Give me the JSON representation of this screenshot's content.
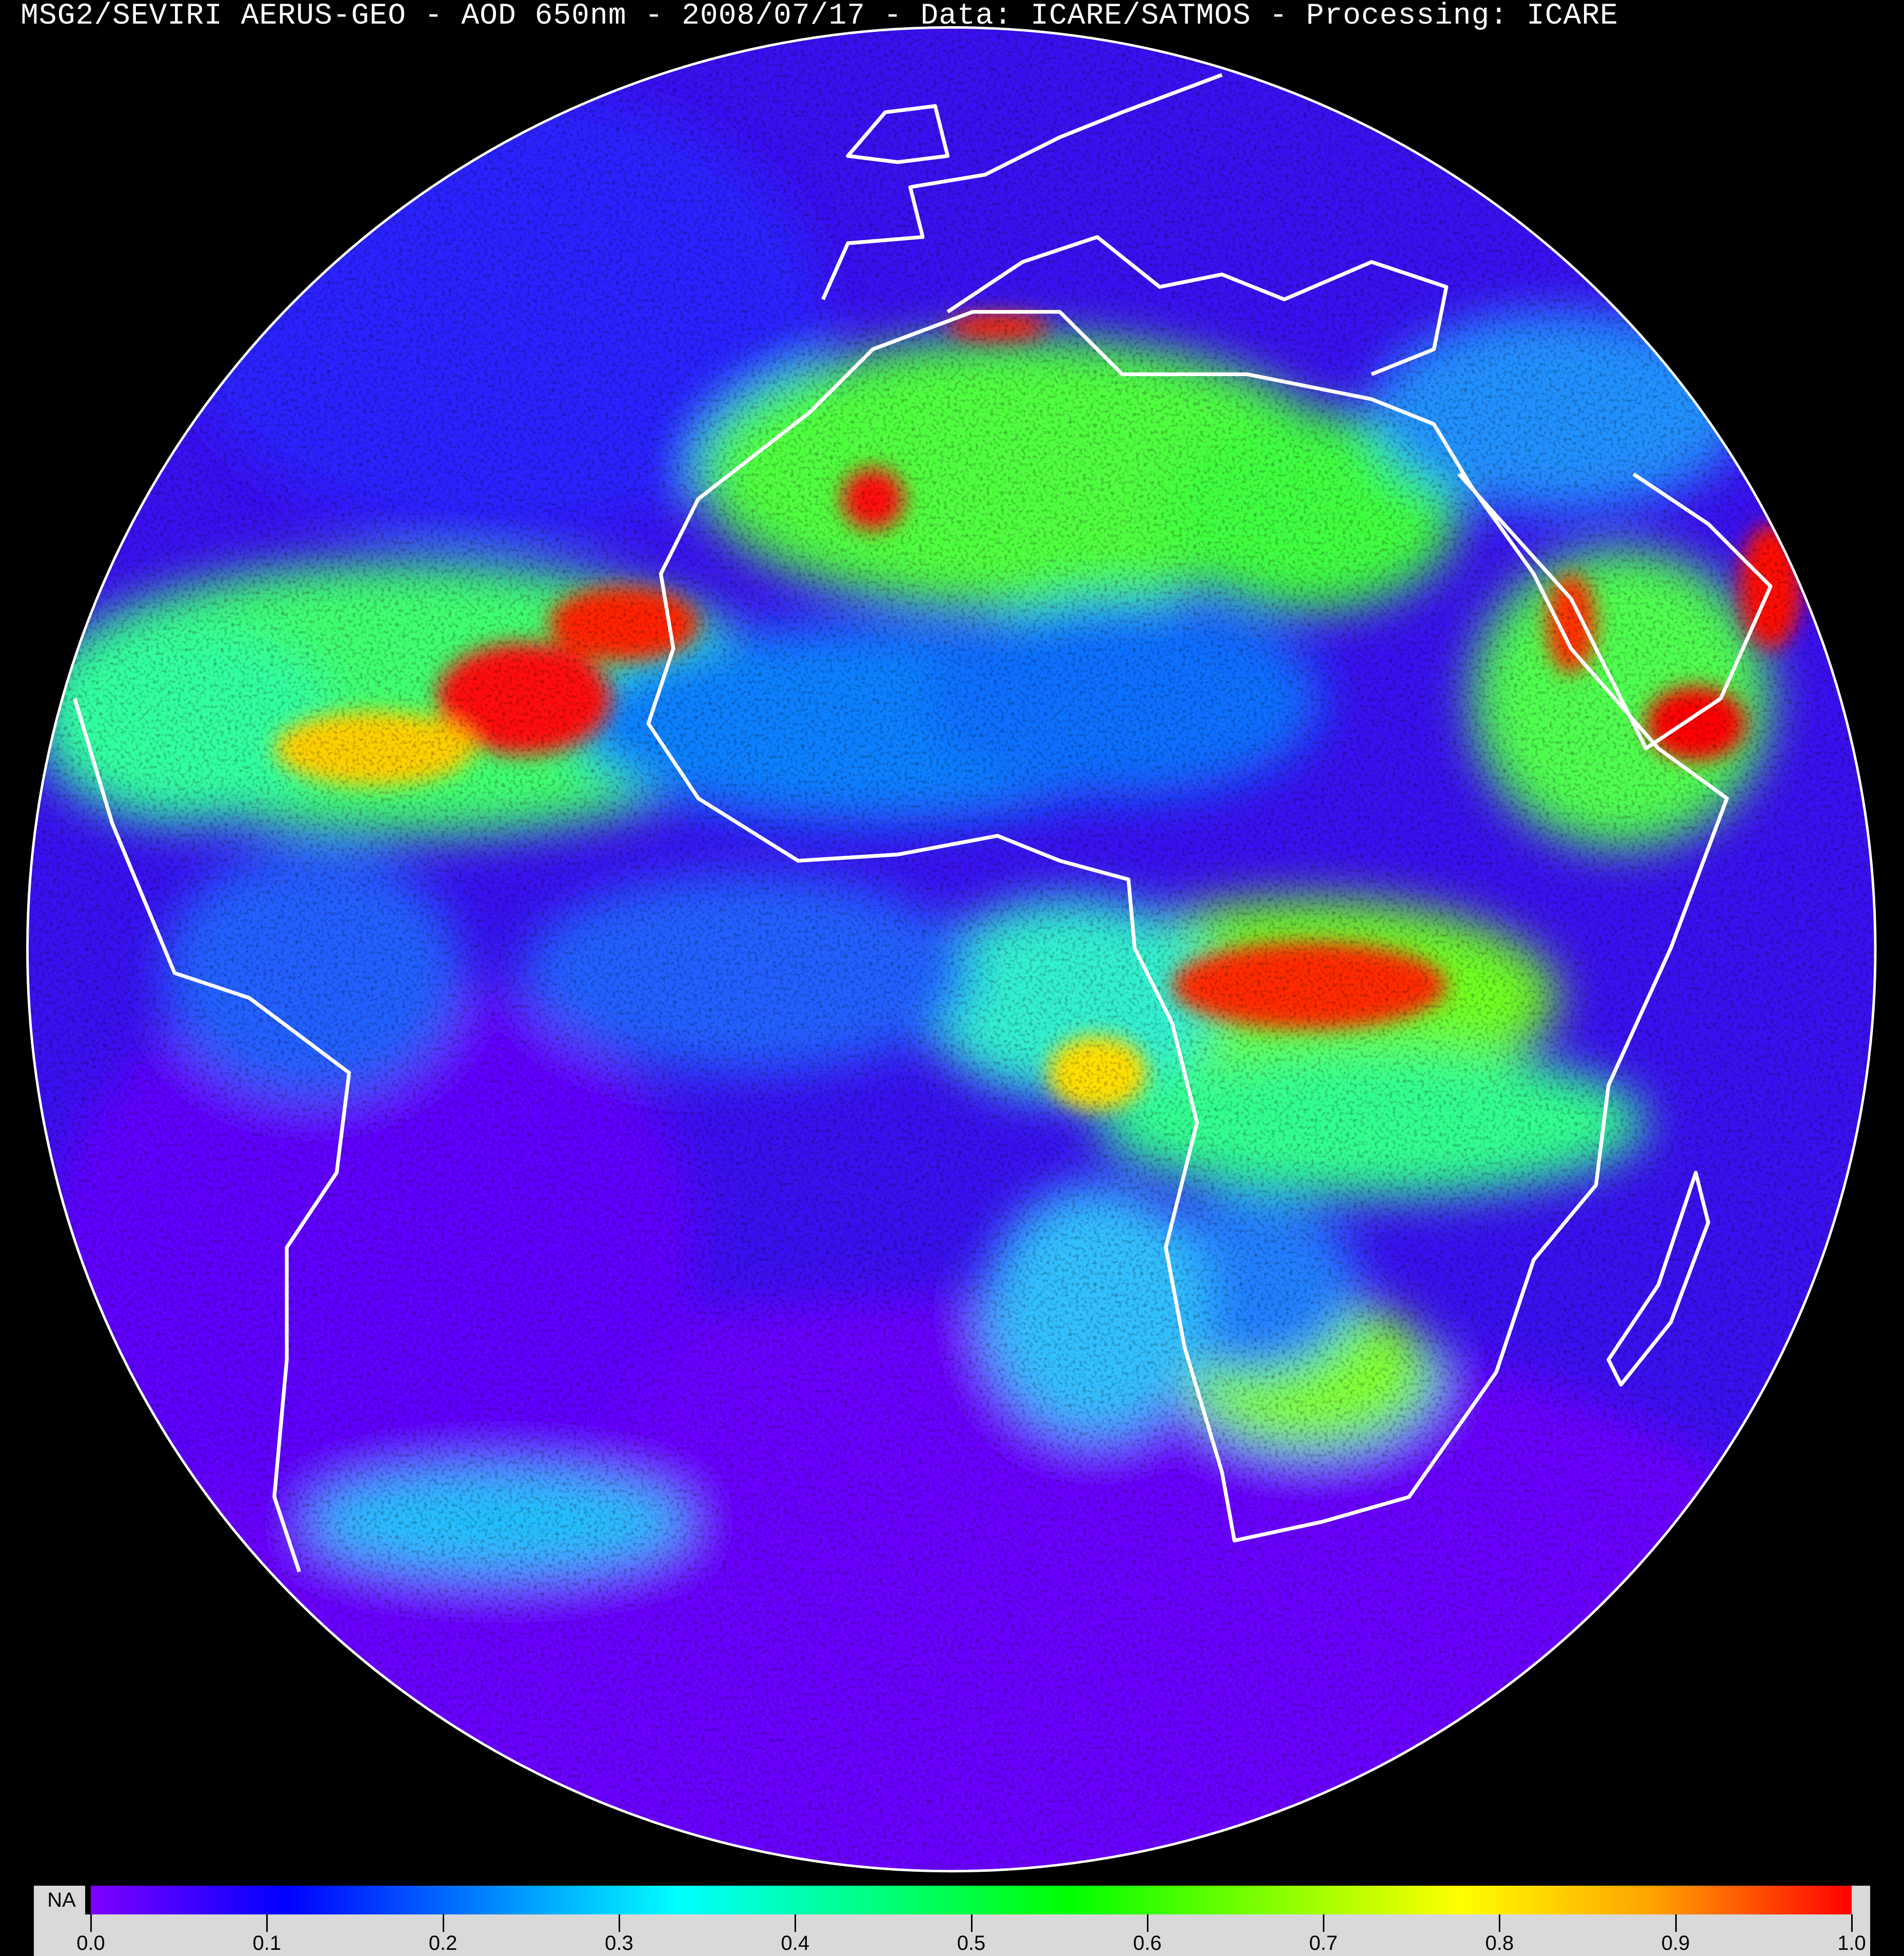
{
  "title": "MSG2/SEVIRI AERUS-GEO - AOD 650nm - 2008/07/17 - Data: ICARE/SATMOS - Processing: ICARE",
  "map": {
    "projection": "geostationary full disk",
    "variable": "AOD 650nm",
    "coastline_color": "#ffffff",
    "background_color": "#000000"
  },
  "colorbar": {
    "na_label": "NA",
    "na_color": "#000000",
    "min": 0.0,
    "max": 1.0,
    "ticks": [
      "0.0",
      "0.1",
      "0.2",
      "0.3",
      "0.4",
      "0.5",
      "0.6",
      "0.7",
      "0.8",
      "0.9",
      "1.0"
    ],
    "colors": [
      "#8000ff",
      "#0000ff",
      "#0080ff",
      "#00ffff",
      "#00ff80",
      "#00ff00",
      "#80ff00",
      "#ffff00",
      "#ffa000",
      "#ff0000"
    ]
  }
}
